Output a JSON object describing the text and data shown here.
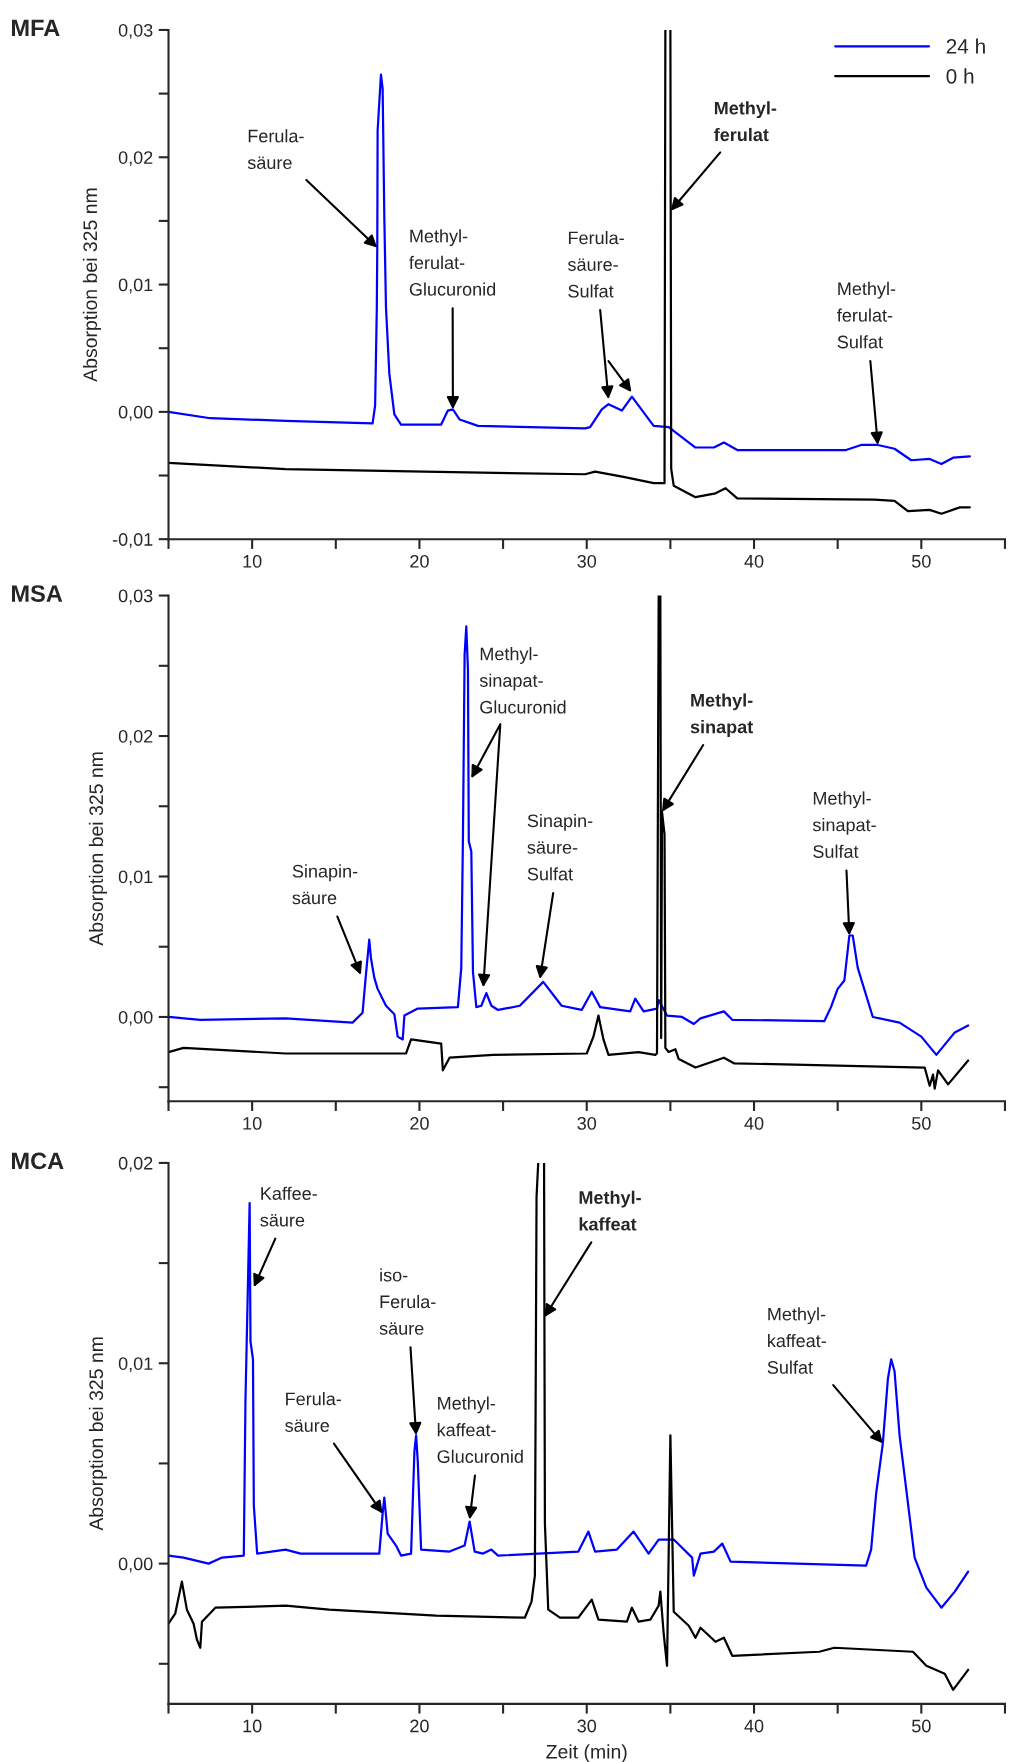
{
  "chart_data": [
    {
      "type": "line",
      "title": "MFA",
      "ylabel": "Absorption bei 325 nm",
      "legend": "top right",
      "xlim": [
        5,
        55
      ],
      "xticks": [
        {
          "value": 5,
          "label": null
        },
        10,
        {
          "value": 15,
          "label": null
        },
        20,
        {
          "value": 25,
          "label": null
        },
        30,
        {
          "value": 35,
          "label": null
        },
        40,
        {
          "value": 45,
          "label": null
        },
        50,
        {
          "value": 55,
          "label": null
        }
      ],
      "ylim": [
        -0.01,
        0.03
      ],
      "yticks": [
        {
          "value": -0.01,
          "label": "-0,01"
        },
        {
          "value": -0.005,
          "label": null
        },
        {
          "value": 0,
          "label": "0,00"
        },
        {
          "value": 0.005,
          "label": null
        },
        {
          "value": 0.01,
          "label": "0,01"
        },
        {
          "value": 0.015,
          "label": null
        },
        {
          "value": 0.02,
          "label": "0,02"
        },
        {
          "value": 0.025,
          "label": null
        },
        {
          "value": 0.03,
          "label": "0,03"
        }
      ],
      "series": [
        {
          "name": "24 h",
          "color": "#0000ff",
          "x": [
            5,
            7.5,
            12.0,
            17.2,
            17.35,
            17.45,
            17.48,
            17.5,
            17.7,
            17.8,
            17.9,
            18.0,
            18.2,
            18.5,
            18.9,
            21.3,
            21.7,
            22.0,
            22.4,
            23.5,
            29.9,
            30.2,
            30.9,
            31.3,
            32.1,
            32.7,
            34.0,
            34.9,
            36.5,
            37.6,
            38.2,
            39.0,
            45.5,
            46.4,
            47.4,
            48.4,
            49.4,
            50.5,
            51.2,
            51.9,
            52.9
          ],
          "values": [
            0.0,
            -0.0005,
            -0.0007,
            -0.0009,
            0.0005,
            0.008,
            0.0129,
            0.0221,
            0.0265,
            0.0254,
            0.0153,
            0.0082,
            0.003,
            -0.0002,
            -0.001,
            -0.001,
            0.0001,
            0.0002,
            -0.0006,
            -0.0011,
            -0.0013,
            -0.0012,
            0.0002,
            0.0006,
            0.0001,
            0.0012,
            -0.0011,
            -0.0012,
            -0.0028,
            -0.0028,
            -0.0024,
            -0.003,
            -0.003,
            -0.0026,
            -0.0026,
            -0.0029,
            -0.0038,
            -0.0037,
            -0.0041,
            -0.0036,
            -0.0035
          ]
        },
        {
          "name": "0 h",
          "color": "#000000",
          "x": [
            5,
            12,
            20.3,
            29.9,
            30.5,
            32.2,
            34.0,
            34.65,
            34.7,
            34.85,
            35.0,
            35.02,
            35.05,
            35.2,
            36.5,
            37.7,
            38.3,
            39.0,
            47.2,
            48.4,
            49.2,
            50.5,
            51.2,
            52.3,
            52.9
          ],
          "values": [
            -0.004,
            -0.0045,
            -0.0047,
            -0.0049,
            -0.0047,
            -0.0051,
            -0.0056,
            -0.0056,
            0.03,
            null,
            0.03,
            0.0158,
            -0.0045,
            -0.0058,
            -0.0067,
            -0.0064,
            -0.006,
            -0.0068,
            -0.0069,
            -0.007,
            -0.0078,
            -0.0077,
            -0.008,
            -0.0075,
            -0.0075
          ]
        }
      ],
      "annotations": [
        {
          "text": "Ferula-\nsäure",
          "x": 17.48,
          "y": 0.0129
        },
        {
          "text": "Methyl-\nferulat-\nGlucuronid",
          "x": 22.0,
          "y": 0.0002
        },
        {
          "text": "Ferula-\nsäure-\nSulfat",
          "x": 31.3,
          "y": 0.001
        },
        {
          "text": "Methyl-\nferulat",
          "x": 35.02,
          "y": 0.0158
        },
        {
          "text": "Methyl-\nferulat-\nSulfat",
          "x": 47.4,
          "y": -0.0026
        }
      ]
    },
    {
      "type": "line",
      "title": "MSA",
      "ylabel": "Absorption bei 325 nm",
      "xlim": [
        5,
        55
      ],
      "xticks": [
        {
          "value": 5,
          "label": null
        },
        10,
        {
          "value": 15,
          "label": null
        },
        20,
        {
          "value": 25,
          "label": null
        },
        30,
        {
          "value": 35,
          "label": null
        },
        40,
        {
          "value": 45,
          "label": null
        },
        50,
        {
          "value": 55,
          "label": null
        }
      ],
      "ylim": [
        -0.006,
        0.03
      ],
      "yticks": [
        {
          "value": -0.005,
          "label": null
        },
        {
          "value": 0,
          "label": "0,00"
        },
        {
          "value": 0.005,
          "label": null
        },
        {
          "value": 0.01,
          "label": "0,01"
        },
        {
          "value": 0.015,
          "label": null
        },
        {
          "value": 0.02,
          "label": "0,02"
        },
        {
          "value": 0.025,
          "label": null
        },
        {
          "value": 0.03,
          "label": "0,03"
        }
      ],
      "series": [
        {
          "color": "#0000ff",
          "x": [
            5,
            6.9,
            12.0,
            16.0,
            16.6,
            16.8,
            17.0,
            17.1,
            17.3,
            17.5,
            18.0,
            18.5,
            18.7,
            19.0,
            19.1,
            19.9,
            22.3,
            22.5,
            22.6,
            22.7,
            22.8,
            22.9,
            22.95,
            23.1,
            23.2,
            23.4,
            23.7,
            24.0,
            24.3,
            24.7,
            26.0,
            27.4,
            28.5,
            29.7,
            30.3,
            30.8,
            32.6,
            32.9,
            33.4,
            34.2,
            34.3,
            34.8,
            35.7,
            36.4,
            36.8,
            38.2,
            38.7,
            44.2,
            44.6,
            45.0,
            45.4,
            45.7,
            45.9,
            46.2,
            47.1,
            48.7,
            50.0,
            50.9,
            52.0,
            52.8
          ],
          "values": [
            0.0,
            -0.0002,
            -0.0001,
            -0.0004,
            0.0003,
            0.003,
            0.0055,
            0.0042,
            0.0028,
            0.002,
            0.0008,
            0.0002,
            -0.0014,
            -0.0016,
            0.0001,
            0.0006,
            0.0007,
            0.0035,
            0.0128,
            0.0258,
            0.0278,
            0.0247,
            0.0125,
            0.0118,
            0.0032,
            0.0007,
            0.0008,
            0.0017,
            0.0008,
            0.0005,
            0.0008,
            0.0025,
            0.0008,
            0.0005,
            0.0018,
            0.0007,
            0.0004,
            0.0013,
            0.0004,
            0.0006,
            0.0012,
            0.0001,
            0.0,
            -0.0005,
            -0.0001,
            0.0004,
            -0.0002,
            -0.0003,
            0.0007,
            0.002,
            0.0026,
            0.0058,
            0.0058,
            0.0035,
            0.0,
            -0.0004,
            -0.0014,
            -0.0027,
            -0.0011,
            -0.0006
          ]
        },
        {
          "color": "#000000",
          "x": [
            5,
            5.9,
            12.0,
            19.2,
            19.5,
            21.3,
            21.4,
            21.8,
            24.4,
            30.0,
            30.4,
            30.7,
            31.0,
            31.3,
            33.1,
            34.1,
            34.2,
            34.3,
            34.35,
            34.4,
            34.45,
            34.5,
            34.65,
            34.7,
            34.9,
            35.3,
            35.5,
            36.5,
            38.2,
            38.8,
            50.2,
            50.5,
            50.7,
            50.8,
            51.0,
            51.6,
            52.8
          ],
          "values": [
            -0.0025,
            -0.0022,
            -0.0026,
            -0.0026,
            -0.0016,
            -0.0019,
            -0.0038,
            -0.0029,
            -0.0027,
            -0.0026,
            -0.0014,
            0.0001,
            -0.0016,
            -0.0027,
            -0.0025,
            -0.0027,
            -0.0026,
            0.03,
            null,
            0.03,
            -0.0015,
            0.0146,
            0.013,
            -0.0022,
            -0.0025,
            -0.0023,
            -0.003,
            -0.0036,
            -0.0029,
            -0.0033,
            -0.0036,
            -0.0049,
            -0.0041,
            -0.0051,
            -0.0038,
            -0.0048,
            -0.0031
          ]
        }
      ],
      "annotations": [
        {
          "text": "Sinapin-\nsäure",
          "x": 16.5,
          "y": 0.003
        },
        {
          "text": "Methyl-\nsinapat-\nGlucuronid",
          "x": 23.1,
          "y": 0.017
        },
        {
          "text": "Sinapin-\nsäure-\nSulfat",
          "x": 27.2,
          "y": 0.0027
        },
        {
          "text": "Methyl-\nsinapat",
          "x": 34.5,
          "y": 0.0146
        },
        {
          "text": "Methyl-\nsinapat-\nSulfat",
          "x": 45.7,
          "y": 0.0058
        }
      ]
    },
    {
      "type": "line",
      "title": "MCA",
      "ylabel": "Absorption bei 325 nm",
      "xlabel": "Zeit (min)",
      "xlim": [
        5,
        55
      ],
      "xticks": [
        {
          "value": 5,
          "label": null
        },
        10,
        {
          "value": 15,
          "label": null
        },
        20,
        {
          "value": 25,
          "label": null
        },
        30,
        {
          "value": 35,
          "label": null
        },
        40,
        {
          "value": 45,
          "label": null
        },
        50,
        {
          "value": 55,
          "label": null
        }
      ],
      "ylim": [
        -0.007,
        0.02
      ],
      "yticks": [
        {
          "value": -0.005,
          "label": null
        },
        {
          "value": 0,
          "label": "0,00"
        },
        {
          "value": 0.005,
          "label": null
        },
        {
          "value": 0.01,
          "label": "0,01"
        },
        {
          "value": 0.015,
          "label": null
        },
        {
          "value": 0.02,
          "label": "0,02"
        }
      ],
      "series": [
        {
          "color": "#0000ff",
          "x": [
            5,
            5.9,
            7.4,
            8.2,
            9.5,
            9.6,
            9.85,
            9.9,
            10.05,
            10.1,
            10.3,
            12.0,
            12.9,
            17.6,
            17.8,
            17.9,
            18.1,
            18.6,
            18.9,
            19.5,
            19.7,
            19.8,
            19.9,
            20.1,
            21.8,
            22.7,
            23.0,
            23.3,
            23.8,
            24.3,
            24.7,
            29.5,
            30.1,
            30.5,
            31.8,
            32.8,
            33.7,
            34.3,
            35.2,
            36.3,
            36.4,
            36.8,
            37.6,
            38.1,
            38.6,
            46.7,
            47.0,
            47.3,
            47.7,
            48.0,
            48.2,
            48.4,
            48.7,
            49.1,
            49.6,
            50.3,
            51.2,
            52.0,
            52.8
          ],
          "values": [
            0.0004,
            0.0003,
            0.0,
            0.0003,
            0.0004,
            0.0081,
            0.018,
            0.0111,
            0.0102,
            0.0029,
            0.0005,
            0.0007,
            0.0005,
            0.0005,
            0.0025,
            0.0033,
            0.0015,
            0.0009,
            0.0004,
            0.0005,
            0.0056,
            0.0064,
            0.0051,
            0.0007,
            0.0006,
            0.0009,
            0.0021,
            0.0006,
            0.0005,
            0.0007,
            0.0004,
            0.0006,
            0.0016,
            0.0006,
            0.0007,
            0.0016,
            0.0005,
            0.0012,
            0.0012,
            0.0003,
            -0.0006,
            0.0005,
            0.0006,
            0.001,
            0.0001,
            -0.0001,
            0.0007,
            0.0035,
            0.006,
            0.0092,
            0.0102,
            0.0096,
            0.0064,
            0.0037,
            0.0003,
            -0.0012,
            -0.0022,
            -0.0014,
            -0.0004
          ]
        },
        {
          "color": "#000000",
          "x": [
            5,
            5.4,
            5.8,
            6.1,
            6.5,
            6.7,
            6.9,
            7.0,
            7.8,
            12.0,
            14.6,
            21.0,
            26.3,
            26.7,
            26.9,
            27.0,
            27.1,
            27.3,
            27.45,
            27.47,
            27.5,
            27.7,
            28.4,
            29.5,
            30.3,
            30.7,
            32.4,
            32.7,
            33.1,
            33.8,
            34.3,
            34.4,
            34.6,
            34.8,
            35.0,
            35.2,
            36.1,
            36.5,
            36.8,
            37.7,
            38.2,
            38.7,
            43.9,
            44.8,
            49.5,
            50.3,
            51.4,
            51.9,
            52.8
          ],
          "values": [
            -0.003,
            -0.0025,
            -0.0009,
            -0.0023,
            -0.003,
            -0.0038,
            -0.0042,
            -0.0029,
            -0.0022,
            -0.0021,
            -0.0023,
            -0.0026,
            -0.0027,
            -0.0019,
            -0.0006,
            0.0183,
            0.02,
            null,
            0.02,
            0.0123,
            0.002,
            -0.0023,
            -0.0027,
            -0.0027,
            -0.0018,
            -0.0028,
            -0.0029,
            -0.0022,
            -0.0029,
            -0.0028,
            -0.0021,
            -0.0014,
            -0.0035,
            -0.0051,
            0.0064,
            -0.0024,
            -0.0031,
            -0.0037,
            -0.0032,
            -0.0039,
            -0.0037,
            -0.0046,
            -0.0044,
            -0.0042,
            -0.0044,
            -0.0051,
            -0.0055,
            -0.0063,
            -0.0053
          ]
        }
      ],
      "annotations": [
        {
          "text": "Kaffee-\nsäure",
          "x": 10.1,
          "y": 0.0138
        },
        {
          "text": "Ferula-\nsäure",
          "x": 17.8,
          "y": 0.0025
        },
        {
          "text": "iso-\nFerula-\nsäure",
          "x": 19.8,
          "y": 0.0064
        },
        {
          "text": "Methyl-\nkaffeat-\nGlucuronid",
          "x": 23.0,
          "y": 0.0022
        },
        {
          "text": "Methyl-\nkaffeat",
          "x": 27.47,
          "y": 0.0123
        },
        {
          "text": "Methyl-\nkaffeat-\nSulfat",
          "x": 47.7,
          "y": 0.006
        }
      ]
    }
  ]
}
